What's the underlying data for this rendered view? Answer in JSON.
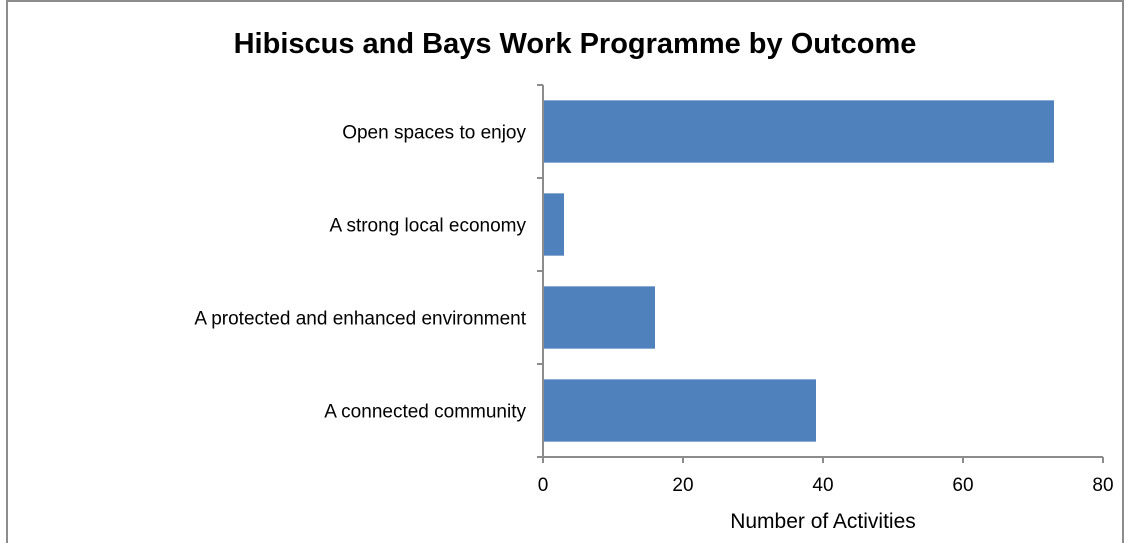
{
  "chart_data": {
    "type": "bar",
    "orientation": "horizontal",
    "title": "Hibiscus and Bays Work Programme by Outcome",
    "xlabel": "Number of Activities",
    "ylabel": "",
    "categories": [
      "Open spaces to enjoy",
      "A strong local economy",
      "A protected and enhanced environment",
      "A connected community"
    ],
    "values": [
      73,
      3,
      16,
      39
    ],
    "xlim": [
      0,
      80
    ],
    "xticks": [
      "0",
      "20",
      "40",
      "60",
      "80"
    ],
    "grid": false,
    "legend": "none",
    "bar_color": "#4f81bd",
    "axis_color": "#8c8c8c"
  }
}
